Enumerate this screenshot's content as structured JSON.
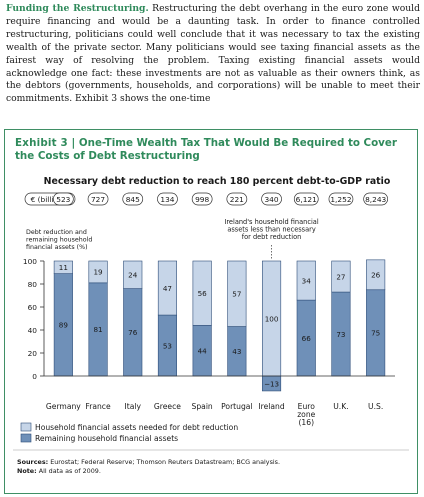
{
  "paragraph": {
    "lead": "Funding the Restructuring.",
    "body": " Restructuring the debt overhang in the euro zone would require financing and would be a daunting task. In order to finance controlled restructuring, politicians could well conclude that it was necessary to tax the existing wealth of the private sector. Many politicians would see taxing financial assets as the fairest way of resolving the problem. Taxing existing financial assets would acknowledge one fact: these investments are not as valuable as their owners think, as the debtors (governments, households, and corporations) will be unable to meet their commitments. Exhibit 3 shows the one-time"
  },
  "exhibit": {
    "number": "Exhibit 3",
    "separator": " | ",
    "title": "One-Time Wealth Tax That Would Be Required to Cover the Costs of Debt Restructuring",
    "sources": "Sources: Eurostat; Federal Reserve; Thomson Reuters Datastream; BCG analysis.",
    "note": "Note: All data as of 2009."
  },
  "chart_data": {
    "type": "bar",
    "stacked": true,
    "title": "Necessary debt reduction to reach 180 percent debt-to-GDP ratio",
    "unit_label": "€ (billions)",
    "ylabel": "Debt reduction and remaining household financial assets (%)",
    "ylim": [
      -20,
      100
    ],
    "yticks": [
      0,
      20,
      40,
      60,
      80,
      100
    ],
    "categories": [
      "Germany",
      "France",
      "Italy",
      "Greece",
      "Spain",
      "Portugal",
      "Ireland",
      "Euro zone (16)",
      "U.K.",
      "U.S."
    ],
    "debt_reduction_billions": [
      "523",
      "727",
      "845",
      "134",
      "998",
      "221",
      "340",
      "6,121",
      "1,252",
      "8,243"
    ],
    "series": [
      {
        "name": "Remaining household financial assets",
        "values": [
          89,
          81,
          76,
          53,
          44,
          43,
          -13,
          66,
          73,
          75
        ],
        "color": "#6f90b8"
      },
      {
        "name": "Household financial assets needed for debt reduction",
        "values": [
          11,
          19,
          24,
          47,
          56,
          57,
          100,
          34,
          27,
          26
        ],
        "color": "#c6d5e8"
      }
    ],
    "annotation": "Ireland's household financial assets less than necessary for debt reduction",
    "legend_position": "bottom-left"
  }
}
